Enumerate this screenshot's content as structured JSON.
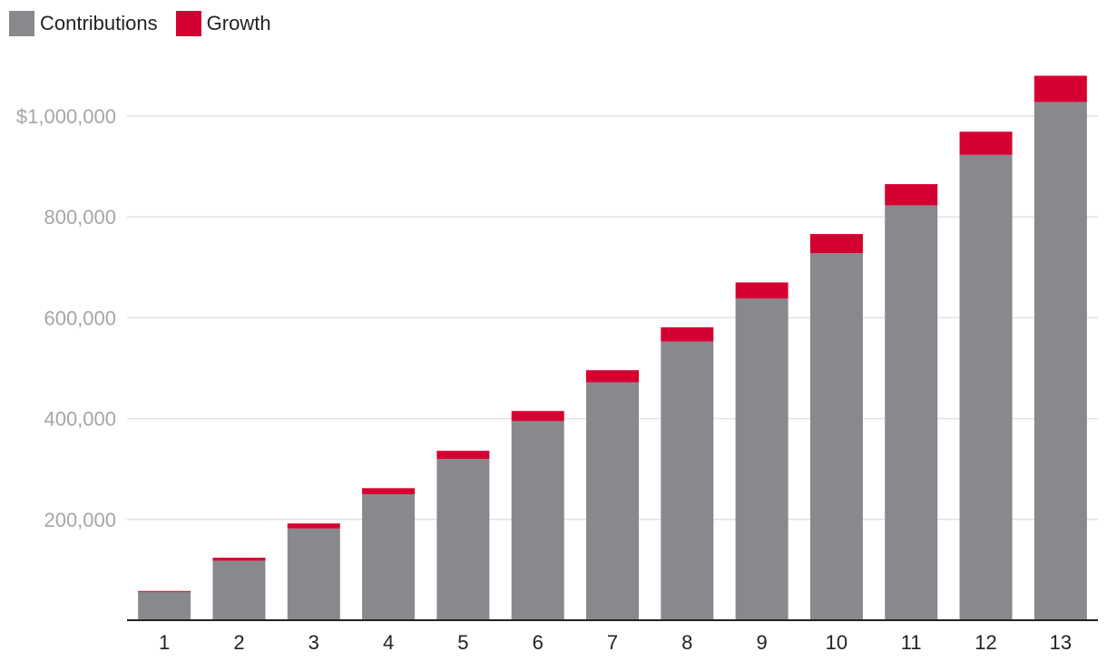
{
  "chart_data": {
    "type": "bar",
    "stacked": true,
    "categories": [
      "1",
      "2",
      "3",
      "4",
      "5",
      "6",
      "7",
      "8",
      "9",
      "10",
      "11",
      "12",
      "13"
    ],
    "series": [
      {
        "name": "Contributions",
        "color": "#89888d",
        "values": [
          56000,
          118000,
          182000,
          250000,
          320000,
          395000,
          472000,
          553000,
          638000,
          728000,
          823000,
          923000,
          1028000
        ]
      },
      {
        "name": "Growth",
        "color": "#d50032",
        "values": [
          2000,
          6000,
          10000,
          12000,
          16000,
          20000,
          24000,
          28000,
          32000,
          38000,
          42000,
          46000,
          52000
        ]
      }
    ],
    "yticks": [
      {
        "value": 200000,
        "label": "200,000"
      },
      {
        "value": 400000,
        "label": "400,000"
      },
      {
        "value": 600000,
        "label": "600,000"
      },
      {
        "value": 800000,
        "label": "800,000"
      },
      {
        "value": 1000000,
        "label": "$1,000,000"
      }
    ],
    "ylim": [
      0,
      1100000
    ],
    "grid": true,
    "legend_position": "top-left",
    "title": "",
    "xlabel": "",
    "ylabel": ""
  }
}
